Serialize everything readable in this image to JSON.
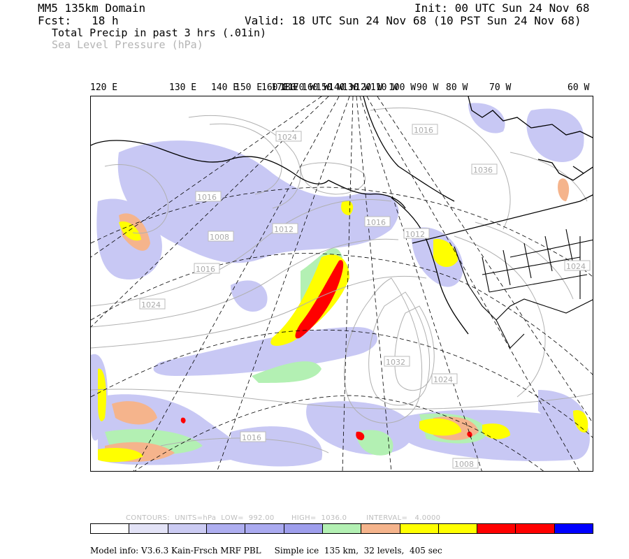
{
  "header": {
    "domain_title": "MM5 135km Domain",
    "init": "Init: 00 UTC Sun 24 Nov 68",
    "fcst": "Fcst:   18 h",
    "valid": "Valid: 18 UTC Sun 24 Nov 68 (10 PST Sun 24 Nov 68)",
    "field_primary": "Total Precip in past 3 hrs (.01in)",
    "field_secondary": "Sea Level Pressure (hPa)"
  },
  "longitude_labels": [
    "120 E",
    "130 E",
    "140 E",
    "150 E",
    "160 E",
    "170 E",
    "180",
    "170 W",
    "160 W",
    "150 W",
    "140 W",
    "130 W",
    "120 W",
    "110 W",
    "100 W",
    "90 W",
    "80 W",
    "70 W",
    "60 W"
  ],
  "pressure_labels": [
    "1024",
    "1008",
    "1016",
    "1012",
    "1024",
    "1016",
    "1036",
    "1016",
    "1024",
    "1032",
    "1024",
    "1016",
    "1012",
    "1008",
    "1016"
  ],
  "contour_info": {
    "contours": "CONTOURS:",
    "units": "UNITS=hPa",
    "low": "LOW=  992.00",
    "high": "HIGH=  1036.0",
    "interval": "INTERVAL=   4.0000"
  },
  "colorbar": [
    "#ffffff",
    "#e3e3f7",
    "#cbcbf3",
    "#aeaef0",
    "#aaaaf0",
    "#9e9eec",
    "#b3f0b3",
    "#f5b48c",
    "#ffff00",
    "#ffff00",
    "#ff0000",
    "#ff0000",
    "#0000ff"
  ],
  "footer": "Model info: V3.6.3 Kain-Frsch MRF PBL     Simple ice  135 km,  32 levels,  405 sec"
}
